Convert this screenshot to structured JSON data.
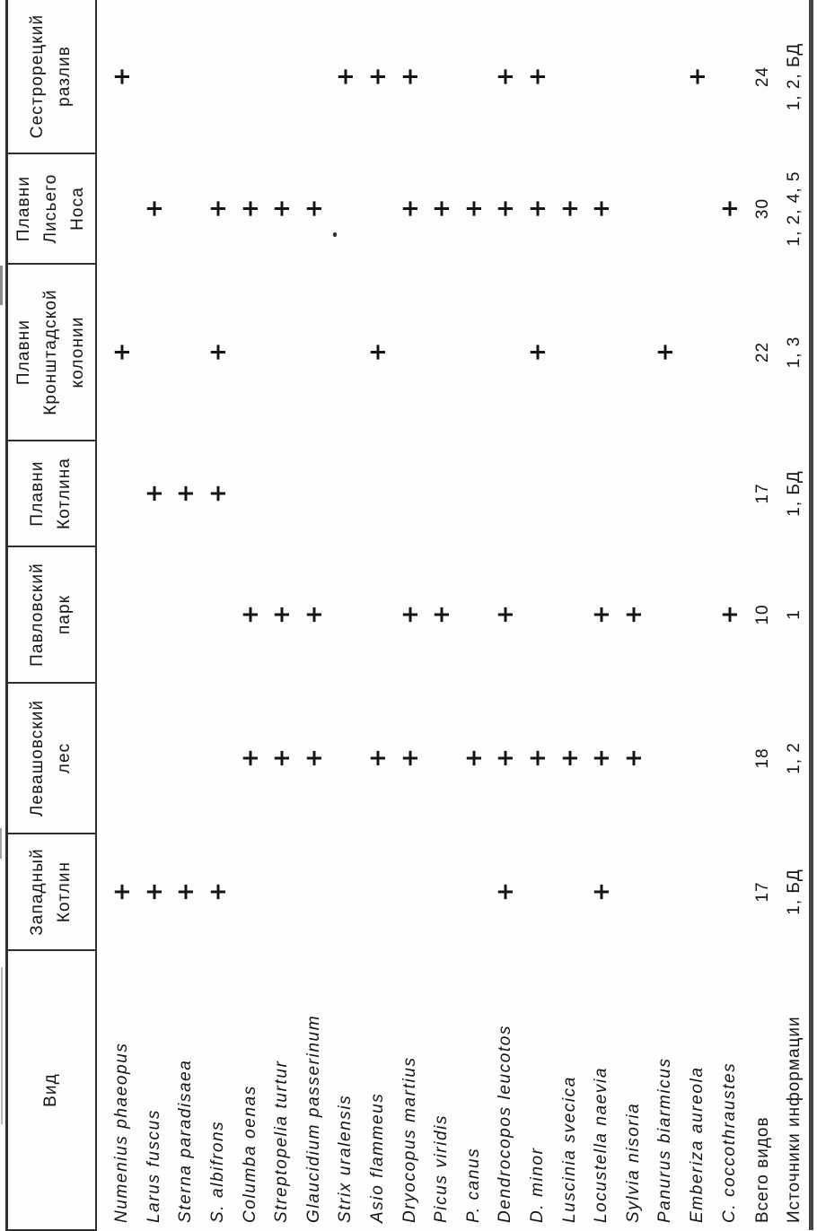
{
  "table": {
    "species_column_header": "Вид",
    "presence_mark": "+",
    "totals_row_label": "Всего видов",
    "sources_row_label": "Источники информации",
    "sites": [
      {
        "name": "Западный\nКотлин",
        "total": "17",
        "sources": "1, БД"
      },
      {
        "name": "Левашовский\nлес",
        "total": "18",
        "sources": "1, 2"
      },
      {
        "name": "Павловский\nпарк",
        "total": "10",
        "sources": "1"
      },
      {
        "name": "Плавни\nКотлина",
        "total": "17",
        "sources": "1, БД"
      },
      {
        "name": "Плавни\nКронштадской\nколонии",
        "total": "22",
        "sources": "1, 3"
      },
      {
        "name": "Плавни\nЛисьего\nНоса",
        "total": "30",
        "sources": "1, 2, 4, 5"
      },
      {
        "name": "Сестрорецкий\nразлив",
        "total": "24",
        "sources": "1, 2, БД"
      }
    ],
    "species": [
      {
        "name": "Numenius phaeopus",
        "presence": [
          1,
          0,
          0,
          0,
          1,
          0,
          1
        ]
      },
      {
        "name": "Larus fuscus",
        "presence": [
          1,
          0,
          0,
          1,
          0,
          1,
          0
        ]
      },
      {
        "name": "Sterna paradisaea",
        "presence": [
          1,
          0,
          0,
          1,
          0,
          0,
          0
        ]
      },
      {
        "name": "S. albifrons",
        "presence": [
          1,
          0,
          0,
          1,
          1,
          1,
          0
        ]
      },
      {
        "name": "Columba oenas",
        "presence": [
          0,
          1,
          1,
          0,
          0,
          1,
          0
        ]
      },
      {
        "name": "Streptopelia turtur",
        "presence": [
          0,
          1,
          1,
          0,
          0,
          1,
          0
        ]
      },
      {
        "name": "Glaucidium passerinum",
        "presence": [
          0,
          1,
          1,
          0,
          0,
          1,
          0
        ]
      },
      {
        "name": "Strix uralensis",
        "presence": [
          0,
          0,
          0,
          0,
          0,
          0,
          1
        ]
      },
      {
        "name": "Asio flammeus",
        "presence": [
          0,
          1,
          0,
          0,
          1,
          0,
          1
        ]
      },
      {
        "name": "Dryocopus martius",
        "presence": [
          0,
          1,
          1,
          0,
          0,
          1,
          1
        ]
      },
      {
        "name": "Picus viridis",
        "presence": [
          0,
          0,
          1,
          0,
          0,
          1,
          0
        ]
      },
      {
        "name": "P. canus",
        "presence": [
          0,
          1,
          0,
          0,
          0,
          1,
          0
        ]
      },
      {
        "name": "Dendrocopos leucotos",
        "presence": [
          1,
          1,
          1,
          0,
          0,
          1,
          1
        ]
      },
      {
        "name": "D. minor",
        "presence": [
          0,
          1,
          0,
          0,
          1,
          1,
          1
        ]
      },
      {
        "name": "Luscinia svecica",
        "presence": [
          0,
          1,
          0,
          0,
          0,
          1,
          0
        ]
      },
      {
        "name": "Locustella naevia",
        "presence": [
          1,
          1,
          1,
          0,
          0,
          1,
          0
        ]
      },
      {
        "name": "Sylvia nisoria",
        "presence": [
          0,
          1,
          1,
          0,
          0,
          0,
          0
        ]
      },
      {
        "name": "Panurus biarmicus",
        "presence": [
          0,
          0,
          0,
          0,
          1,
          0,
          0
        ]
      },
      {
        "name": "Emberiza aureola",
        "presence": [
          0,
          0,
          0,
          0,
          0,
          0,
          1
        ]
      },
      {
        "name": "C. coccothraustes",
        "presence": [
          0,
          0,
          1,
          0,
          0,
          1,
          0
        ]
      }
    ]
  }
}
